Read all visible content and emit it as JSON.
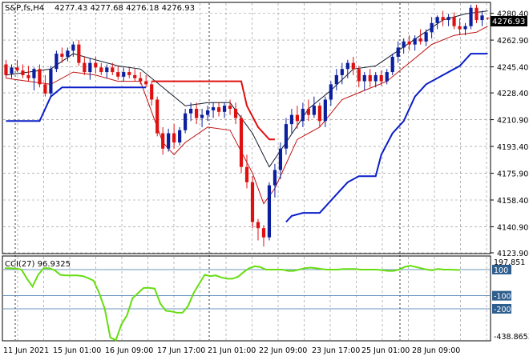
{
  "header": {
    "symbol": "S&P,fs,H4",
    "ohlc": "4277.43 4277.68 4276.18 4276.93"
  },
  "price_tag": "4276.93",
  "indicator_label": "CCI(27) 96.9325",
  "colors": {
    "up_candle": "#0a1e9e",
    "down_candle": "#e01010",
    "grid": "#8a8a8a",
    "envelope_upper": "#101828",
    "envelope_lower": "#c01010",
    "trail_stop_up": "#0a1ec8",
    "trail_stop_down": "#e01010",
    "cci_line": "#66dd11",
    "cci_level": "#3b74a8",
    "price_tag_bg": "#000000",
    "label_bg": "#2e5e8e"
  },
  "chart_data": [
    {
      "type": "candlestick",
      "title": "S&P,fs,H4",
      "y_ticks": [
        "4280.40",
        "4262.90",
        "4245.40",
        "4228.40",
        "4210.90",
        "4193.40",
        "4175.90",
        "4158.40",
        "4140.90",
        "4123.90"
      ],
      "x_ticks": [
        "11 Jun 2021",
        "15 Jun 01:00",
        "16 Jun 09:00",
        "17 Jun 17:00",
        "21 Jun 01:00",
        "22 Jun 09:00",
        "23 Jun 17:00",
        "25 Jun 01:00",
        "28 Jun 09:00"
      ],
      "ylim": [
        4123.9,
        4287.0
      ],
      "grid": true,
      "candles": [
        [
          4247,
          4250,
          4238,
          4240
        ],
        [
          4241,
          4247,
          4238,
          4245
        ],
        [
          4245,
          4250,
          4242,
          4243
        ],
        [
          4243,
          4247,
          4238,
          4240
        ],
        [
          4240,
          4246,
          4236,
          4238
        ],
        [
          4238,
          4245,
          4230,
          4244
        ],
        [
          4244,
          4247,
          4232,
          4234
        ],
        [
          4234,
          4240,
          4226,
          4228
        ],
        [
          4228,
          4246,
          4226,
          4244
        ],
        [
          4244,
          4256,
          4242,
          4254
        ],
        [
          4254,
          4258,
          4248,
          4252
        ],
        [
          4252,
          4258,
          4249,
          4256
        ],
        [
          4256,
          4262,
          4252,
          4260
        ],
        [
          4260,
          4263,
          4246,
          4248
        ],
        [
          4248,
          4252,
          4240,
          4242
        ],
        [
          4242,
          4251,
          4237,
          4248
        ],
        [
          4248,
          4252,
          4241,
          4245
        ],
        [
          4245,
          4248,
          4240,
          4242
        ],
        [
          4242,
          4247,
          4238,
          4245
        ],
        [
          4245,
          4248,
          4240,
          4242
        ],
        [
          4242,
          4246,
          4237,
          4239
        ],
        [
          4239,
          4245,
          4236,
          4242
        ],
        [
          4242,
          4245,
          4238,
          4240
        ],
        [
          4240,
          4244,
          4236,
          4238
        ],
        [
          4238,
          4242,
          4234,
          4236
        ],
        [
          4236,
          4240,
          4232,
          4234
        ],
        [
          4234,
          4236,
          4220,
          4224
        ],
        [
          4224,
          4226,
          4200,
          4202
        ],
        [
          4202,
          4206,
          4188,
          4192
        ],
        [
          4192,
          4205,
          4190,
          4202
        ],
        [
          4202,
          4208,
          4192,
          4196
        ],
        [
          4196,
          4206,
          4194,
          4204
        ],
        [
          4204,
          4218,
          4202,
          4215
        ],
        [
          4215,
          4222,
          4210,
          4218
        ],
        [
          4218,
          4222,
          4208,
          4212
        ],
        [
          4212,
          4218,
          4206,
          4214
        ],
        [
          4214,
          4220,
          4210,
          4217
        ],
        [
          4217,
          4222,
          4212,
          4219
        ],
        [
          4219,
          4222,
          4213,
          4216
        ],
        [
          4216,
          4222,
          4212,
          4220
        ],
        [
          4220,
          4224,
          4214,
          4218
        ],
        [
          4218,
          4222,
          4208,
          4212
        ],
        [
          4212,
          4214,
          4176,
          4180
        ],
        [
          4180,
          4188,
          4166,
          4170
        ],
        [
          4170,
          4174,
          4140,
          4144
        ],
        [
          4144,
          4146,
          4132,
          4140
        ],
        [
          4140,
          4142,
          4128,
          4134
        ],
        [
          4134,
          4170,
          4132,
          4168
        ],
        [
          4168,
          4182,
          4160,
          4178
        ],
        [
          4178,
          4196,
          4172,
          4192
        ],
        [
          4192,
          4212,
          4188,
          4208
        ],
        [
          4208,
          4218,
          4202,
          4214
        ],
        [
          4214,
          4220,
          4205,
          4210
        ],
        [
          4210,
          4222,
          4206,
          4218
        ],
        [
          4218,
          4224,
          4210,
          4214
        ],
        [
          4214,
          4226,
          4212,
          4220
        ],
        [
          4220,
          4222,
          4206,
          4210
        ],
        [
          4210,
          4226,
          4206,
          4224
        ],
        [
          4224,
          4236,
          4220,
          4234
        ],
        [
          4234,
          4244,
          4230,
          4240
        ],
        [
          4240,
          4248,
          4234,
          4244
        ],
        [
          4244,
          4250,
          4238,
          4248
        ],
        [
          4248,
          4252,
          4240,
          4244
        ],
        [
          4244,
          4246,
          4232,
          4236
        ],
        [
          4236,
          4242,
          4230,
          4240
        ],
        [
          4240,
          4244,
          4232,
          4236
        ],
        [
          4236,
          4242,
          4232,
          4240
        ],
        [
          4240,
          4243,
          4233,
          4236
        ],
        [
          4236,
          4244,
          4234,
          4242
        ],
        [
          4242,
          4254,
          4240,
          4252
        ],
        [
          4252,
          4262,
          4248,
          4258
        ],
        [
          4258,
          4264,
          4254,
          4262
        ],
        [
          4262,
          4266,
          4256,
          4260
        ],
        [
          4260,
          4266,
          4256,
          4264
        ],
        [
          4264,
          4270,
          4260,
          4262
        ],
        [
          4262,
          4270,
          4259,
          4268
        ],
        [
          4268,
          4278,
          4264,
          4274
        ],
        [
          4274,
          4279,
          4270,
          4278
        ],
        [
          4278,
          4282,
          4272,
          4276
        ],
        [
          4276,
          4280,
          4272,
          4278
        ],
        [
          4278,
          4281,
          4270,
          4272
        ],
        [
          4272,
          4277,
          4266,
          4270
        ],
        [
          4270,
          4274,
          4266,
          4272
        ],
        [
          4272,
          4286,
          4270,
          4284
        ],
        [
          4284,
          4286,
          4274,
          4276
        ],
        [
          4276,
          4282,
          4272,
          4279
        ],
        [
          4277.43,
          4277.68,
          4276.18,
          4276.93
        ]
      ],
      "series": [
        {
          "type": "line",
          "points": [
            [
              0,
              4240
            ],
            [
              4,
              4242
            ],
            [
              8,
              4244
            ],
            [
              12,
              4254
            ],
            [
              16,
              4250
            ],
            [
              20,
              4246
            ],
            [
              24,
              4244
            ],
            [
              28,
              4232
            ],
            [
              32,
              4220
            ],
            [
              36,
              4222
            ],
            [
              40,
              4222
            ],
            [
              44,
              4202
            ],
            [
              47,
              4180
            ],
            [
              50,
              4196
            ],
            [
              54,
              4218
            ],
            [
              58,
              4230
            ],
            [
              62,
              4244
            ],
            [
              66,
              4246
            ],
            [
              70,
              4256
            ],
            [
              74,
              4266
            ],
            [
              78,
              4276
            ],
            [
              82,
              4280
            ],
            [
              86,
              4282
            ]
          ]
        },
        {
          "type": "line",
          "points": [
            [
              0,
              4238
            ],
            [
              4,
              4236
            ],
            [
              8,
              4234
            ],
            [
              12,
              4242
            ],
            [
              16,
              4240
            ],
            [
              20,
              4236
            ],
            [
              24,
              4236
            ],
            [
              28,
              4196
            ],
            [
              30,
              4188
            ],
            [
              32,
              4196
            ],
            [
              36,
              4206
            ],
            [
              40,
              4204
            ],
            [
              44,
              4176
            ],
            [
              46,
              4156
            ],
            [
              48,
              4166
            ],
            [
              52,
              4198
            ],
            [
              56,
              4206
            ],
            [
              60,
              4224
            ],
            [
              64,
              4230
            ],
            [
              68,
              4236
            ],
            [
              72,
              4248
            ],
            [
              76,
              4260
            ],
            [
              80,
              4266
            ],
            [
              84,
              4268
            ],
            [
              86,
              4272
            ]
          ]
        },
        {
          "type": "step",
          "name_hidden": true,
          "segments": [
            {
              "dir": "up",
              "points": [
                [
                  0,
                  4210
                ],
                [
                  6,
                  4210
                ],
                [
                  7,
                  4218
                ],
                [
                  8,
                  4226
                ],
                [
                  10,
                  4232
                ],
                [
                  25,
                  4232
                ]
              ]
            },
            {
              "dir": "down",
              "points": [
                [
                  26,
                  4236
                ],
                [
                  42,
                  4236
                ],
                [
                  43,
                  4220
                ],
                [
                  45,
                  4206
                ],
                [
                  47,
                  4198
                ],
                [
                  48,
                  4198
                ]
              ]
            },
            {
              "dir": "up",
              "points": [
                [
                  50,
                  4144
                ],
                [
                  51,
                  4148
                ],
                [
                  53,
                  4150
                ],
                [
                  56,
                  4150
                ],
                [
                  59,
                  4162
                ],
                [
                  61,
                  4170
                ],
                [
                  63,
                  4174
                ],
                [
                  66,
                  4174
                ],
                [
                  67,
                  4188
                ],
                [
                  69,
                  4202
                ],
                [
                  71,
                  4210
                ],
                [
                  73,
                  4226
                ],
                [
                  75,
                  4234
                ],
                [
                  78,
                  4240
                ],
                [
                  81,
                  4246
                ],
                [
                  83,
                  4254
                ],
                [
                  86,
                  4254
                ]
              ]
            }
          ]
        }
      ]
    },
    {
      "type": "line",
      "title": "CCI(27) 96.9325",
      "y_ticks": [
        "197.851",
        "100",
        "-100",
        "-200",
        "-438.8653"
      ],
      "levels": [
        100,
        -100,
        -200
      ],
      "ylim": [
        -438.8653,
        197.851
      ],
      "values": [
        110,
        110,
        108,
        100,
        30,
        -30,
        60,
        110,
        110,
        95,
        60,
        55,
        55,
        55,
        50,
        35,
        15,
        -80,
        -200,
        -420,
        -440,
        -320,
        -250,
        -120,
        -80,
        -40,
        -40,
        -45,
        -160,
        -215,
        -220,
        -230,
        -230,
        -180,
        -80,
        -10,
        60,
        50,
        55,
        40,
        30,
        30,
        45,
        80,
        110,
        125,
        120,
        100,
        100,
        100,
        100,
        90,
        90,
        100,
        110,
        115,
        110,
        105,
        100,
        100,
        100,
        105,
        105,
        105,
        100,
        100,
        100,
        100,
        95,
        90,
        90,
        100,
        120,
        130,
        120,
        110,
        100,
        95,
        105,
        100,
        100,
        98,
        96.9325
      ]
    }
  ]
}
